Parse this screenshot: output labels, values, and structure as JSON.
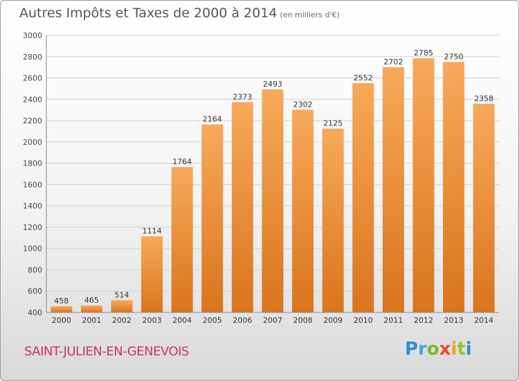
{
  "header": {
    "title": "Autres Impôts et Taxes de 2000 à 2014",
    "subtitle": "(en milliers d'€)"
  },
  "footer": {
    "city": "SAINT-JULIEN-EN-GENEVOIS",
    "logo_letters": [
      {
        "ch": "P",
        "color": "#2e8fd6"
      },
      {
        "ch": "r",
        "color": "#3aa6e0"
      },
      {
        "ch": "o",
        "color": "#7ab828"
      },
      {
        "ch": "x",
        "color": "#e84a2a"
      },
      {
        "ch": "i",
        "color": "#f0a020"
      },
      {
        "ch": "t",
        "color": "#9bbf2a"
      },
      {
        "ch": "i",
        "color": "#2e8fd6"
      }
    ]
  },
  "colors": {
    "bar_top": "#f7a95a",
    "bar_bottom": "#d9741c",
    "grid": "#d0d0d0",
    "city": "#cc3366"
  },
  "chart_data": {
    "type": "bar",
    "title": "Autres Impôts et Taxes de 2000 à 2014",
    "subtitle": "(en milliers d'€)",
    "categories": [
      "2000",
      "2001",
      "2002",
      "2003",
      "2004",
      "2005",
      "2006",
      "2007",
      "2008",
      "2009",
      "2010",
      "2011",
      "2012",
      "2013",
      "2014"
    ],
    "values": [
      458,
      465,
      514,
      1114,
      1764,
      2164,
      2373,
      2493,
      2302,
      2125,
      2552,
      2702,
      2785,
      2750,
      2358
    ],
    "ylim": [
      400,
      3000
    ],
    "yticks": [
      400,
      600,
      800,
      1000,
      1200,
      1400,
      1600,
      1800,
      2000,
      2200,
      2400,
      2600,
      2800,
      3000
    ],
    "grid": true,
    "legend": "none"
  }
}
